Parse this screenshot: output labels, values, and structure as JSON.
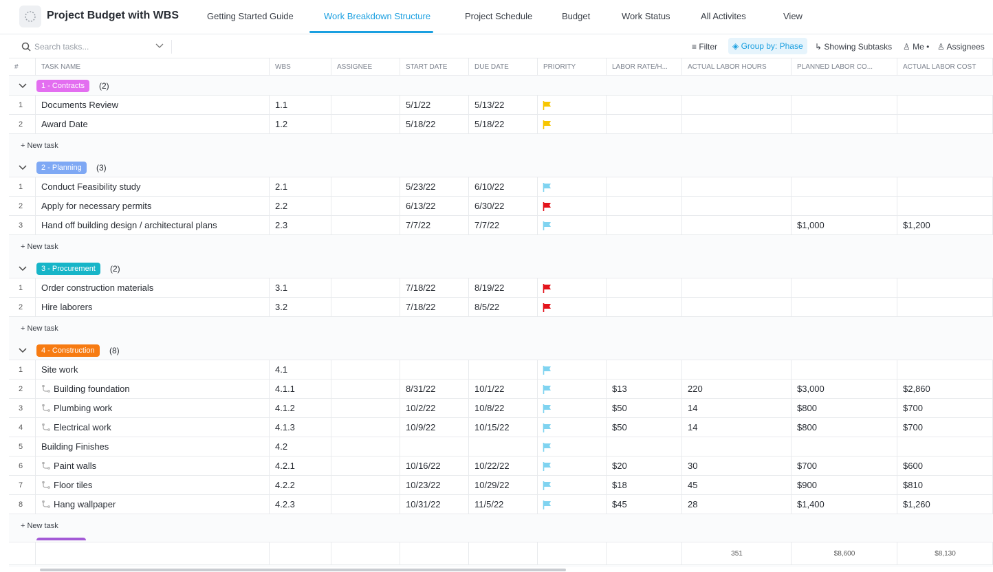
{
  "header": {
    "title": "Project Budget with WBS",
    "tabs": [
      "Getting Started Guide",
      "Work Breakdown Structure",
      "Project Schedule",
      "Budget",
      "Work Status",
      "All Activites",
      "View"
    ],
    "active_tab": 1
  },
  "toolbar": {
    "search_placeholder": "Search tasks...",
    "filter": "Filter",
    "group_by": "Group by: Phase",
    "subtasks": "Showing Subtasks",
    "me": "Me",
    "assignees": "Assignees"
  },
  "table": {
    "columns": [
      "#",
      "TASK NAME",
      "WBS",
      "ASSIGNEE",
      "START DATE",
      "DUE DATE",
      "PRIORITY",
      "LABOR RATE/H...",
      "ACTUAL LABOR HOURS",
      "PLANNED LABOR CO...",
      "ACTUAL LABOR COST"
    ],
    "new_task": "+ New task",
    "groups": [
      {
        "name": "1 - Contracts",
        "count": "(2)",
        "color": "#e36ef0",
        "rows": [
          {
            "num": "1",
            "name": "Documents Review",
            "wbs": "1.1",
            "start": "5/1/22",
            "due": "5/13/22",
            "flag": "#f7c600"
          },
          {
            "num": "2",
            "name": "Award Date",
            "wbs": "1.2",
            "start": "5/18/22",
            "due": "5/18/22",
            "flag": "#f7c600"
          }
        ]
      },
      {
        "name": "2 - Planning",
        "count": "(3)",
        "color": "#7ea8f4",
        "rows": [
          {
            "num": "1",
            "name": "Conduct Feasibility study",
            "wbs": "2.1",
            "start": "5/23/22",
            "due": "6/10/22",
            "flag": "#7fd3f0"
          },
          {
            "num": "2",
            "name": "Apply for necessary permits",
            "wbs": "2.2",
            "start": "6/13/22",
            "due": "6/30/22",
            "flag": "#e3141b"
          },
          {
            "num": "3",
            "name": "Hand off building design / architectural plans",
            "wbs": "2.3",
            "start": "7/7/22",
            "due": "7/7/22",
            "flag": "#7fd3f0",
            "planned": "$1,000",
            "actual": "$1,200"
          }
        ]
      },
      {
        "name": "3 - Procurement",
        "count": "(2)",
        "color": "#17b5c8",
        "rows": [
          {
            "num": "1",
            "name": "Order construction materials",
            "wbs": "3.1",
            "start": "7/18/22",
            "due": "8/19/22",
            "flag": "#e3141b"
          },
          {
            "num": "2",
            "name": "Hire laborers",
            "wbs": "3.2",
            "start": "7/18/22",
            "due": "8/5/22",
            "flag": "#e3141b"
          }
        ]
      },
      {
        "name": "4 - Construction",
        "count": "(8)",
        "color": "#f77b12",
        "rows": [
          {
            "num": "1",
            "name": "Site work",
            "wbs": "4.1",
            "flag": "#7fd3f0"
          },
          {
            "num": "2",
            "name": "Building foundation",
            "wbs": "4.1.1",
            "start": "8/31/22",
            "due": "10/1/22",
            "flag": "#7fd3f0",
            "rate": "$13",
            "hours": "220",
            "planned": "$3,000",
            "actual": "$2,860",
            "sub": true
          },
          {
            "num": "3",
            "name": "Plumbing work",
            "wbs": "4.1.2",
            "start": "10/2/22",
            "due": "10/8/22",
            "flag": "#7fd3f0",
            "rate": "$50",
            "hours": "14",
            "planned": "$800",
            "actual": "$700",
            "sub": true
          },
          {
            "num": "4",
            "name": "Electrical work",
            "wbs": "4.1.3",
            "start": "10/9/22",
            "due": "10/15/22",
            "flag": "#7fd3f0",
            "rate": "$50",
            "hours": "14",
            "planned": "$800",
            "actual": "$700",
            "sub": true
          },
          {
            "num": "5",
            "name": "Building Finishes",
            "wbs": "4.2",
            "flag": "#7fd3f0"
          },
          {
            "num": "6",
            "name": "Paint walls",
            "wbs": "4.2.1",
            "start": "10/16/22",
            "due": "10/22/22",
            "flag": "#7fd3f0",
            "rate": "$20",
            "hours": "30",
            "planned": "$700",
            "actual": "$600",
            "sub": true
          },
          {
            "num": "7",
            "name": "Floor tiles",
            "wbs": "4.2.2",
            "start": "10/23/22",
            "due": "10/29/22",
            "flag": "#7fd3f0",
            "rate": "$18",
            "hours": "45",
            "planned": "$900",
            "actual": "$810",
            "sub": true
          },
          {
            "num": "8",
            "name": "Hang wallpaper",
            "wbs": "4.2.3",
            "start": "10/31/22",
            "due": "11/5/22",
            "flag": "#7fd3f0",
            "rate": "$45",
            "hours": "28",
            "planned": "$1,400",
            "actual": "$1,260",
            "sub": true
          }
        ]
      }
    ],
    "totals": {
      "hours": "351",
      "planned": "$8,600",
      "actual": "$8,130"
    }
  }
}
